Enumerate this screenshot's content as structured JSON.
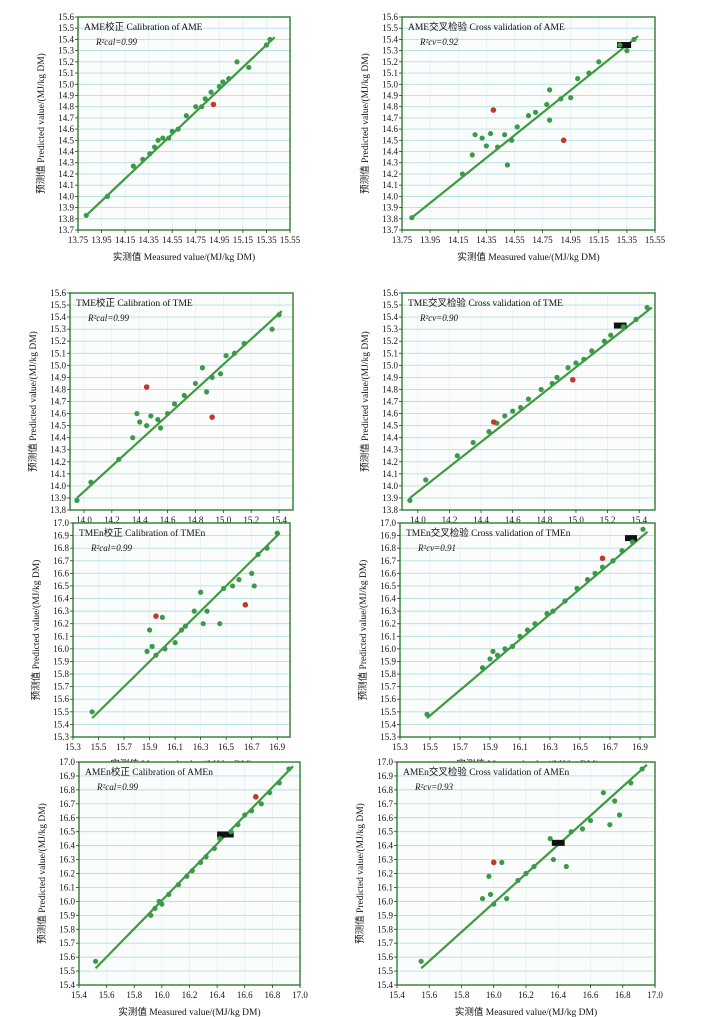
{
  "xlabel": "实测值 Measured value/(MJ/kg DM)",
  "ylabel": "预测值 Predicted value/(MJ/kg DM)",
  "colors": {
    "point": "#3a9a48",
    "outlier": "#c0392b",
    "line": "#3f9a3f",
    "grid": "#9ed4d6",
    "frame": "#2e7d32"
  },
  "chart_data": [
    {
      "type": "scatter",
      "title": "AME校正 Calibration of AME",
      "r2": "R²cal=0.99",
      "xlim": [
        13.75,
        15.55
      ],
      "ylim": [
        13.7,
        15.6
      ],
      "xticks": [
        13.75,
        13.95,
        14.15,
        14.35,
        14.55,
        14.75,
        14.95,
        15.15,
        15.35,
        15.55
      ],
      "yticks": [
        13.7,
        13.8,
        13.9,
        14.0,
        14.1,
        14.2,
        14.3,
        14.4,
        14.5,
        14.6,
        14.7,
        14.8,
        14.9,
        15.0,
        15.1,
        15.2,
        15.3,
        15.4,
        15.5,
        15.6
      ],
      "line": [
        [
          13.82,
          13.83
        ],
        [
          15.42,
          15.42
        ]
      ],
      "points": [
        [
          13.82,
          13.83
        ],
        [
          14.0,
          14.0
        ],
        [
          14.22,
          14.27
        ],
        [
          14.3,
          14.33
        ],
        [
          14.36,
          14.38
        ],
        [
          14.4,
          14.44
        ],
        [
          14.43,
          14.5
        ],
        [
          14.47,
          14.52
        ],
        [
          14.52,
          14.52
        ],
        [
          14.55,
          14.58
        ],
        [
          14.6,
          14.6
        ],
        [
          14.67,
          14.72
        ],
        [
          14.75,
          14.8
        ],
        [
          14.8,
          14.8
        ],
        [
          14.83,
          14.87
        ],
        [
          14.88,
          14.93
        ],
        [
          14.95,
          14.98
        ],
        [
          14.98,
          15.02
        ],
        [
          15.03,
          15.05
        ],
        [
          15.1,
          15.2
        ],
        [
          15.2,
          15.15
        ],
        [
          15.35,
          15.35
        ],
        [
          15.38,
          15.4
        ]
      ],
      "outliers": [
        [
          14.9,
          14.82
        ]
      ],
      "bands": []
    },
    {
      "type": "scatter",
      "title": "AME交叉检验 Cross validation of AME",
      "r2": "R²cv=0.92",
      "xlim": [
        13.75,
        15.55
      ],
      "ylim": [
        13.7,
        15.6
      ],
      "xticks": [
        13.75,
        13.95,
        14.15,
        14.35,
        14.55,
        14.75,
        14.95,
        15.15,
        15.35,
        15.55
      ],
      "yticks": [
        13.7,
        13.8,
        13.9,
        14.0,
        14.1,
        14.2,
        14.3,
        14.4,
        14.5,
        14.6,
        14.7,
        14.8,
        14.9,
        15.0,
        15.1,
        15.2,
        15.3,
        15.4,
        15.5,
        15.6
      ],
      "line": [
        [
          13.82,
          13.81
        ],
        [
          15.43,
          15.43
        ]
      ],
      "points": [
        [
          13.82,
          13.81
        ],
        [
          14.18,
          14.2
        ],
        [
          14.25,
          14.37
        ],
        [
          14.27,
          14.55
        ],
        [
          14.32,
          14.52
        ],
        [
          14.35,
          14.45
        ],
        [
          14.38,
          14.56
        ],
        [
          14.43,
          14.44
        ],
        [
          14.48,
          14.55
        ],
        [
          14.5,
          14.28
        ],
        [
          14.53,
          14.5
        ],
        [
          14.57,
          14.62
        ],
        [
          14.65,
          14.72
        ],
        [
          14.7,
          14.75
        ],
        [
          14.78,
          14.82
        ],
        [
          14.8,
          14.95
        ],
        [
          14.8,
          14.68
        ],
        [
          14.88,
          14.87
        ],
        [
          14.95,
          14.88
        ],
        [
          15.0,
          15.05
        ],
        [
          15.08,
          15.1
        ],
        [
          15.15,
          15.2
        ],
        [
          15.3,
          15.35
        ],
        [
          15.35,
          15.3
        ],
        [
          15.4,
          15.4
        ]
      ],
      "outliers": [
        [
          14.4,
          14.77
        ],
        [
          14.9,
          14.5
        ]
      ],
      "bands": [
        [
          15.28,
          15.38,
          15.35
        ]
      ]
    },
    {
      "type": "scatter",
      "title": "TME校正 Calibration of TME",
      "r2": "R²cal=0.99",
      "xlim": [
        13.9,
        15.5
      ],
      "ylim": [
        13.8,
        15.6
      ],
      "xticks": [
        14.0,
        14.2,
        14.4,
        14.6,
        14.8,
        15.0,
        15.2,
        15.4
      ],
      "yticks": [
        13.8,
        13.9,
        14.0,
        14.1,
        14.2,
        14.3,
        14.4,
        14.5,
        14.6,
        14.7,
        14.8,
        14.9,
        15.0,
        15.1,
        15.2,
        15.3,
        15.4,
        15.5,
        15.6
      ],
      "line": [
        [
          13.95,
          13.9
        ],
        [
          15.42,
          15.45
        ]
      ],
      "points": [
        [
          13.95,
          13.88
        ],
        [
          14.05,
          14.03
        ],
        [
          14.25,
          14.22
        ],
        [
          14.35,
          14.4
        ],
        [
          14.38,
          14.6
        ],
        [
          14.4,
          14.53
        ],
        [
          14.45,
          14.5
        ],
        [
          14.48,
          14.58
        ],
        [
          14.53,
          14.55
        ],
        [
          14.55,
          14.48
        ],
        [
          14.6,
          14.6
        ],
        [
          14.65,
          14.68
        ],
        [
          14.72,
          14.75
        ],
        [
          14.8,
          14.85
        ],
        [
          14.85,
          14.98
        ],
        [
          14.88,
          14.78
        ],
        [
          14.92,
          14.9
        ],
        [
          14.98,
          14.93
        ],
        [
          15.02,
          15.08
        ],
        [
          15.08,
          15.1
        ],
        [
          15.15,
          15.18
        ],
        [
          15.35,
          15.3
        ],
        [
          15.4,
          15.42
        ]
      ],
      "outliers": [
        [
          14.45,
          14.82
        ],
        [
          14.92,
          14.57
        ]
      ],
      "bands": []
    },
    {
      "type": "scatter",
      "title": "TME交叉检验 Cross validation of TME",
      "r2": "R²cv=0.90",
      "xlim": [
        13.9,
        15.5
      ],
      "ylim": [
        13.8,
        15.6
      ],
      "xticks": [
        14.0,
        14.2,
        14.4,
        14.6,
        14.8,
        15.0,
        15.2,
        15.4
      ],
      "yticks": [
        13.8,
        13.9,
        14.0,
        14.1,
        14.2,
        14.3,
        14.4,
        14.5,
        14.6,
        14.7,
        14.8,
        14.9,
        15.0,
        15.1,
        15.2,
        15.3,
        15.4,
        15.5,
        15.6
      ],
      "line": [
        [
          13.95,
          13.9
        ],
        [
          15.48,
          15.48
        ]
      ],
      "points": [
        [
          13.95,
          13.88
        ],
        [
          14.05,
          14.05
        ],
        [
          14.25,
          14.25
        ],
        [
          14.35,
          14.36
        ],
        [
          14.45,
          14.45
        ],
        [
          14.5,
          14.52
        ],
        [
          14.55,
          14.58
        ],
        [
          14.6,
          14.62
        ],
        [
          14.65,
          14.65
        ],
        [
          14.7,
          14.72
        ],
        [
          14.78,
          14.8
        ],
        [
          14.85,
          14.85
        ],
        [
          14.88,
          14.9
        ],
        [
          14.95,
          14.98
        ],
        [
          15.0,
          15.02
        ],
        [
          15.05,
          15.05
        ],
        [
          15.1,
          15.12
        ],
        [
          15.18,
          15.2
        ],
        [
          15.22,
          15.25
        ],
        [
          15.3,
          15.32
        ],
        [
          15.38,
          15.38
        ],
        [
          15.45,
          15.48
        ]
      ],
      "outliers": [
        [
          14.48,
          14.53
        ],
        [
          14.98,
          14.88
        ]
      ],
      "bands": [
        [
          15.24,
          15.32,
          15.33
        ]
      ]
    },
    {
      "type": "scatter",
      "title": "TMEn校正 Calibration of TMEn",
      "r2": "R²cal=0.99",
      "xlim": [
        15.3,
        17.0
      ],
      "ylim": [
        15.3,
        17.0
      ],
      "xticks": [
        15.3,
        15.5,
        15.7,
        15.9,
        16.1,
        16.3,
        16.5,
        16.7,
        16.9
      ],
      "yticks": [
        15.3,
        15.4,
        15.5,
        15.6,
        15.7,
        15.8,
        15.9,
        16.0,
        16.1,
        16.2,
        16.3,
        16.4,
        16.5,
        16.6,
        16.7,
        16.8,
        16.9,
        17.0
      ],
      "line": [
        [
          15.45,
          15.45
        ],
        [
          16.92,
          16.92
        ]
      ],
      "points": [
        [
          15.45,
          15.5
        ],
        [
          15.88,
          15.98
        ],
        [
          15.9,
          16.15
        ],
        [
          15.92,
          16.02
        ],
        [
          15.95,
          15.95
        ],
        [
          16.0,
          16.25
        ],
        [
          16.02,
          16.0
        ],
        [
          16.1,
          16.05
        ],
        [
          16.15,
          16.15
        ],
        [
          16.18,
          16.18
        ],
        [
          16.25,
          16.3
        ],
        [
          16.3,
          16.45
        ],
        [
          16.32,
          16.2
        ],
        [
          16.35,
          16.3
        ],
        [
          16.45,
          16.2
        ],
        [
          16.48,
          16.48
        ],
        [
          16.55,
          16.5
        ],
        [
          16.6,
          16.55
        ],
        [
          16.7,
          16.6
        ],
        [
          16.72,
          16.5
        ],
        [
          16.75,
          16.75
        ],
        [
          16.82,
          16.8
        ],
        [
          16.9,
          16.92
        ]
      ],
      "outliers": [
        [
          15.95,
          16.26
        ],
        [
          16.65,
          16.35
        ]
      ],
      "bands": []
    },
    {
      "type": "scatter",
      "title": "TMEn交叉检验 Cross validation of TMEn",
      "r2": "R²cv=0.91",
      "xlim": [
        15.3,
        17.0
      ],
      "ylim": [
        15.3,
        17.0
      ],
      "xticks": [
        15.3,
        15.5,
        15.7,
        15.9,
        16.1,
        16.3,
        16.5,
        16.7,
        16.9
      ],
      "yticks": [
        15.3,
        15.4,
        15.5,
        15.6,
        15.7,
        15.8,
        15.9,
        16.0,
        16.1,
        16.2,
        16.3,
        16.4,
        16.5,
        16.6,
        16.7,
        16.8,
        16.9,
        17.0
      ],
      "line": [
        [
          15.48,
          15.45
        ],
        [
          16.95,
          16.93
        ]
      ],
      "points": [
        [
          15.48,
          15.48
        ],
        [
          15.85,
          15.85
        ],
        [
          15.9,
          15.92
        ],
        [
          15.92,
          15.98
        ],
        [
          15.95,
          15.95
        ],
        [
          16.0,
          16.0
        ],
        [
          16.05,
          16.02
        ],
        [
          16.1,
          16.1
        ],
        [
          16.15,
          16.15
        ],
        [
          16.2,
          16.2
        ],
        [
          16.28,
          16.28
        ],
        [
          16.32,
          16.3
        ],
        [
          16.4,
          16.38
        ],
        [
          16.48,
          16.48
        ],
        [
          16.55,
          16.55
        ],
        [
          16.6,
          16.6
        ],
        [
          16.65,
          16.65
        ],
        [
          16.72,
          16.7
        ],
        [
          16.78,
          16.78
        ],
        [
          16.85,
          16.85
        ],
        [
          16.92,
          16.95
        ]
      ],
      "outliers": [
        [
          16.65,
          16.72
        ]
      ],
      "bands": [
        [
          16.8,
          16.88,
          16.88
        ]
      ]
    },
    {
      "type": "scatter",
      "title": "AMEn校正 Calibration of AMEn",
      "r2": "R²cal=0.99",
      "xlim": [
        15.4,
        17.0
      ],
      "ylim": [
        15.4,
        17.0
      ],
      "xticks": [
        15.4,
        15.6,
        15.8,
        16.0,
        16.2,
        16.4,
        16.6,
        16.8,
        17.0
      ],
      "yticks": [
        15.4,
        15.5,
        15.6,
        15.7,
        15.8,
        15.9,
        16.0,
        16.1,
        16.2,
        16.3,
        16.4,
        16.5,
        16.6,
        16.7,
        16.8,
        16.9,
        17.0
      ],
      "line": [
        [
          15.52,
          15.52
        ],
        [
          16.95,
          16.97
        ]
      ],
      "points": [
        [
          15.52,
          15.57
        ],
        [
          15.92,
          15.9
        ],
        [
          15.95,
          15.95
        ],
        [
          15.98,
          16.0
        ],
        [
          16.0,
          15.98
        ],
        [
          16.05,
          16.05
        ],
        [
          16.12,
          16.12
        ],
        [
          16.18,
          16.18
        ],
        [
          16.22,
          16.22
        ],
        [
          16.28,
          16.28
        ],
        [
          16.32,
          16.32
        ],
        [
          16.38,
          16.38
        ],
        [
          16.42,
          16.45
        ],
        [
          16.5,
          16.5
        ],
        [
          16.55,
          16.55
        ],
        [
          16.6,
          16.62
        ],
        [
          16.65,
          16.65
        ],
        [
          16.72,
          16.7
        ],
        [
          16.78,
          16.78
        ],
        [
          16.85,
          16.85
        ],
        [
          16.92,
          16.95
        ]
      ],
      "outliers": [
        [
          16.68,
          16.75
        ]
      ],
      "bands": [
        [
          16.4,
          16.52,
          16.48
        ]
      ]
    },
    {
      "type": "scatter",
      "title": "AMEn交叉检验 Cross validation of AMEn",
      "r2": "R²cv=0.93",
      "xlim": [
        15.4,
        17.0
      ],
      "ylim": [
        15.4,
        17.0
      ],
      "xticks": [
        15.4,
        15.6,
        15.8,
        16.0,
        16.2,
        16.4,
        16.6,
        16.8,
        17.0
      ],
      "yticks": [
        15.4,
        15.5,
        15.6,
        15.7,
        15.8,
        15.9,
        16.0,
        16.1,
        16.2,
        16.3,
        16.4,
        16.5,
        16.6,
        16.7,
        16.8,
        16.9,
        17.0
      ],
      "line": [
        [
          15.55,
          15.52
        ],
        [
          16.95,
          16.98
        ]
      ],
      "points": [
        [
          15.55,
          15.57
        ],
        [
          15.93,
          16.02
        ],
        [
          15.97,
          16.18
        ],
        [
          15.98,
          16.05
        ],
        [
          16.0,
          15.98
        ],
        [
          16.05,
          16.28
        ],
        [
          16.08,
          16.02
        ],
        [
          16.15,
          16.15
        ],
        [
          16.2,
          16.2
        ],
        [
          16.25,
          16.25
        ],
        [
          16.35,
          16.45
        ],
        [
          16.37,
          16.3
        ],
        [
          16.45,
          16.25
        ],
        [
          16.48,
          16.5
        ],
        [
          16.55,
          16.52
        ],
        [
          16.6,
          16.58
        ],
        [
          16.68,
          16.78
        ],
        [
          16.72,
          16.55
        ],
        [
          16.75,
          16.72
        ],
        [
          16.78,
          16.62
        ],
        [
          16.85,
          16.85
        ],
        [
          16.92,
          16.95
        ]
      ],
      "outliers": [
        [
          16.0,
          16.28
        ]
      ],
      "bands": [
        [
          16.36,
          16.44,
          16.42
        ]
      ]
    }
  ]
}
